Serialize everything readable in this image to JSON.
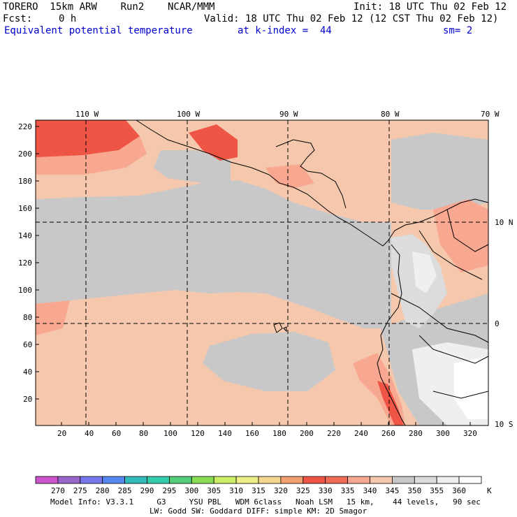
{
  "header": {
    "title_left": "TORERO  15km ARW    Run2    NCAR/MMM",
    "init": "Init: 18 UTC Thu 02 Feb 12",
    "fcst_label": "Fcst:",
    "fcst_value": "0 h",
    "valid": "Valid: 18 UTC Thu 02 Feb 12 (12 CST Thu 02 Feb 12)",
    "field": "Equivalent potential temperature",
    "level": "at k-index =  44",
    "smoothing": "sm= 2"
  },
  "map": {
    "top_lon_labels": [
      "110 W",
      "100 W",
      "90 W",
      "80 W",
      "70 W"
    ],
    "right_lat_labels": [
      "10 N",
      "0",
      "10 S"
    ],
    "left_grid_ticks": [
      "220",
      "200",
      "180",
      "160",
      "140",
      "120",
      "100",
      "80",
      "60",
      "40",
      "20"
    ],
    "bottom_grid_ticks": [
      "20",
      "40",
      "60",
      "80",
      "100",
      "120",
      "140",
      "160",
      "180",
      "200",
      "220",
      "240",
      "260",
      "280",
      "300",
      "320"
    ]
  },
  "colorbar": {
    "unit": "K",
    "levels": [
      "270",
      "275",
      "280",
      "285",
      "290",
      "295",
      "300",
      "305",
      "310",
      "315",
      "320",
      "325",
      "330",
      "335",
      "340",
      "345",
      "350",
      "355",
      "360"
    ],
    "colors": [
      "#cc55cc",
      "#9966cc",
      "#7777ee",
      "#5588ee",
      "#33bbbb",
      "#33ccaa",
      "#55cc77",
      "#88dd55",
      "#ccee66",
      "#eeee88",
      "#f5d890",
      "#f2a070",
      "#ee5544",
      "#f06a55",
      "#f8a890",
      "#f5c8ad",
      "#c8c8c8",
      "#dcdcdc",
      "#efefef",
      "#ffffff"
    ]
  },
  "footer": {
    "line1": "Model Info: V3.3.1     G3     YSU PBL   WDM 6class   Noah LSM   15 km,    44 levels,   90 sec",
    "line2": "LW: Godd SW: Goddard DIFF: simple KM: 2D Smagor"
  }
}
